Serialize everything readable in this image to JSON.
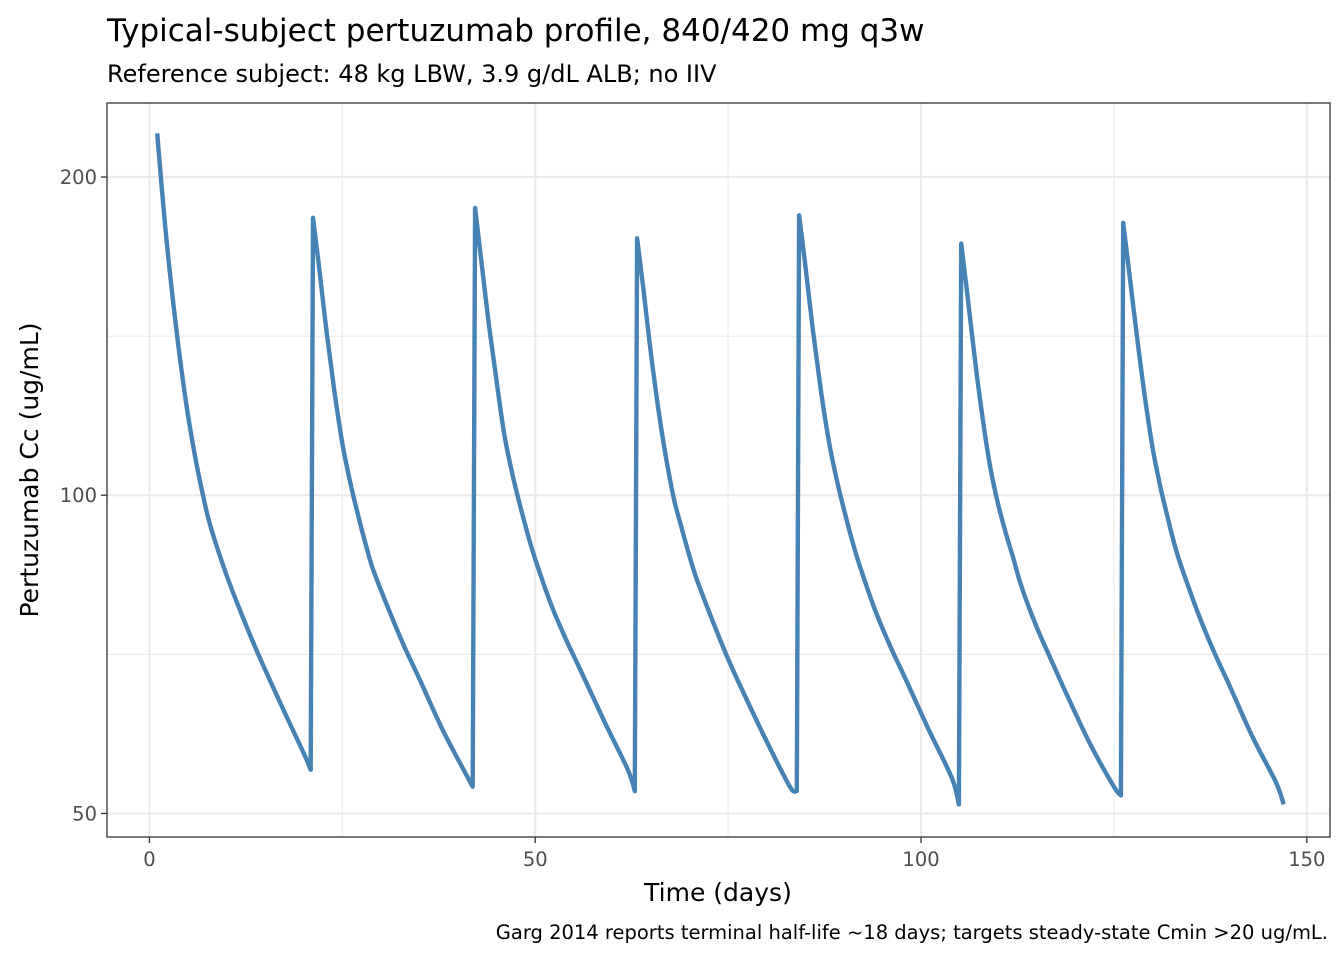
{
  "chart_data": {
    "type": "line",
    "title": "Typical-subject pertuzumab profile, 840/420 mg q3w",
    "subtitle": "Reference subject: 48 kg LBW, 3.9 g/dL ALB; no IIV",
    "caption": "Garg 2014 reports terminal half-life ~18 days; targets steady-state Cmin >20 ug/mL.",
    "xlabel": "Time (days)",
    "ylabel": "Pertuzumab Cc (ug/mL)",
    "x_scale": "linear",
    "y_scale": "log10",
    "xlim": [
      -5.5,
      153
    ],
    "ylim": [
      47.5,
      235
    ],
    "x_ticks": [
      0,
      50,
      100,
      150
    ],
    "x_tick_labels": [
      "0",
      "50",
      "100",
      "150"
    ],
    "x_minor_ticks": [
      25,
      75,
      125
    ],
    "y_ticks": [
      50,
      100,
      200
    ],
    "y_tick_labels": [
      "50",
      "100",
      "200"
    ],
    "y_minor_ticks": [
      70.7,
      141.4
    ],
    "grid": true,
    "colors": {
      "line": "#4682B4",
      "grid": "#EBEBEB",
      "panel_border": "#333333"
    },
    "series": [
      {
        "name": "",
        "x": [
          1,
          2,
          3,
          4,
          5,
          6,
          7,
          8,
          10,
          12,
          14,
          17,
          20,
          20.9,
          21.2,
          22,
          23,
          24,
          25,
          26,
          27,
          28,
          29,
          31,
          33,
          35,
          38,
          41,
          41.9,
          42.2,
          43,
          44,
          45,
          46,
          47,
          48,
          49,
          50,
          52,
          54,
          56,
          59,
          62,
          62.9,
          63.2,
          64,
          65,
          66,
          67,
          68,
          69,
          70,
          71,
          73,
          75,
          77,
          80,
          83,
          83.9,
          84.2,
          85,
          86,
          87,
          88,
          89,
          90,
          91,
          92,
          94,
          96,
          98,
          101,
          104,
          104.9,
          105.2,
          106,
          107,
          108,
          109,
          110,
          111,
          112,
          113,
          115,
          117,
          119,
          122,
          125,
          125.9,
          126.2,
          127,
          128,
          129,
          130,
          131,
          132,
          133,
          134,
          136,
          138,
          140,
          143,
          146,
          147
        ],
        "y": [
          220,
          181,
          154,
          134,
          119,
          108,
          99.5,
          93,
          84,
          77,
          71,
          63.5,
          57,
          55,
          183,
          164,
          142,
          125,
          112,
          103,
          96,
          90,
          85,
          78,
          72,
          67,
          60,
          54.5,
          53,
          187,
          167,
          145,
          128,
          114,
          105,
          98,
          92,
          87,
          79,
          73,
          68,
          61,
          55,
          52.5,
          175,
          157,
          136,
          120,
          108,
          99,
          93,
          87.5,
          83,
          76,
          70,
          65,
          58.5,
          53,
          52.5,
          184,
          165,
          143,
          126,
          113,
          104,
          97,
          91,
          86,
          78,
          72,
          67,
          60,
          54,
          51,
          173,
          155,
          134,
          118,
          106,
          98,
          92,
          87,
          82,
          75,
          69.5,
          64.5,
          58,
          53,
          52,
          181,
          162,
          141,
          124,
          111,
          102,
          95,
          89,
          84.5,
          77,
          71,
          66,
          59,
          53.5,
          51
        ]
      }
    ]
  }
}
